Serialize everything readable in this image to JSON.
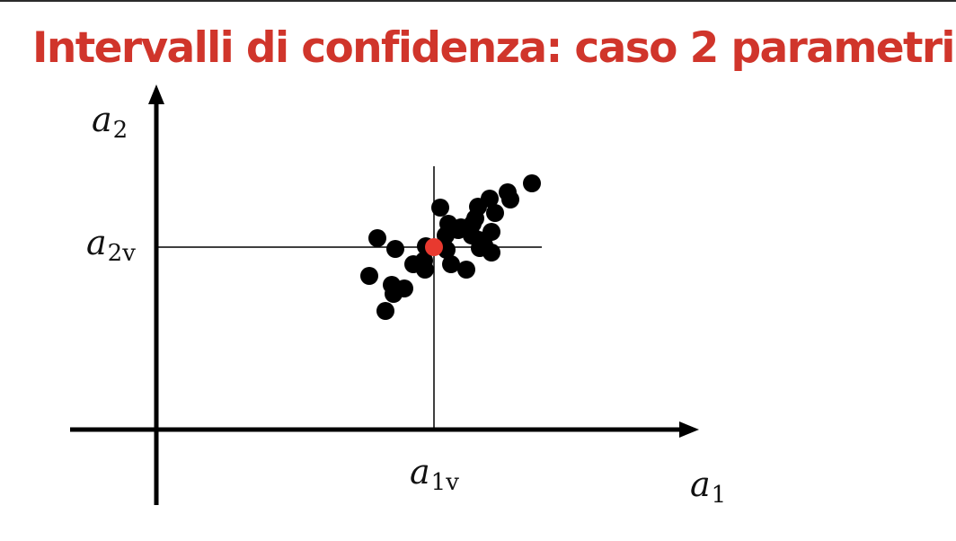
{
  "title": "Intervalli di confidenza: caso 2 parametri",
  "labels": {
    "y_axis": {
      "main": "a",
      "sub": "2"
    },
    "x_axis": {
      "main": "a",
      "sub": "1"
    },
    "y_true": {
      "main": "a",
      "sub": "2v"
    },
    "x_true": {
      "main": "a",
      "sub": "1v"
    }
  },
  "colors": {
    "title": "#d0352b",
    "points": "#000000",
    "true_point": "#e8392f",
    "lines": "#000000"
  },
  "chart_data": {
    "type": "scatter",
    "x_true": 4.81,
    "y_true": 3.31,
    "true_point": {
      "x": 4.81,
      "y": 3.31
    },
    "points": [
      [
        4.88,
        3.75
      ],
      [
        5.45,
        3.25
      ],
      [
        5.32,
        3.3
      ],
      [
        5.3,
        3.76
      ],
      [
        5.08,
        3.5
      ],
      [
        4.95,
        3.28
      ],
      [
        4.72,
        3.32
      ],
      [
        5.24,
        3.57
      ],
      [
        5.27,
        3.63
      ],
      [
        5.63,
        3.92
      ],
      [
        5.49,
        3.69
      ],
      [
        5.9,
        4.02
      ],
      [
        4.94,
        3.44
      ],
      [
        5.31,
        3.39
      ],
      [
        5.45,
        3.48
      ],
      [
        5.17,
        3.06
      ],
      [
        4.34,
        2.89
      ],
      [
        4.7,
        3.16
      ],
      [
        4.97,
        3.57
      ],
      [
        5.37,
        3.33
      ],
      [
        4.58,
        3.12
      ],
      [
        4.09,
        2.99
      ],
      [
        4.48,
        2.85
      ],
      [
        4.38,
        3.29
      ],
      [
        5.66,
        3.84
      ],
      [
        5.23,
        3.44
      ],
      [
        4.71,
        3.06
      ],
      [
        4.36,
        2.79
      ],
      [
        5.11,
        3.53
      ],
      [
        4.18,
        3.41
      ],
      [
        5.0,
        3.12
      ],
      [
        4.27,
        2.6
      ],
      [
        5.43,
        3.85
      ]
    ]
  }
}
